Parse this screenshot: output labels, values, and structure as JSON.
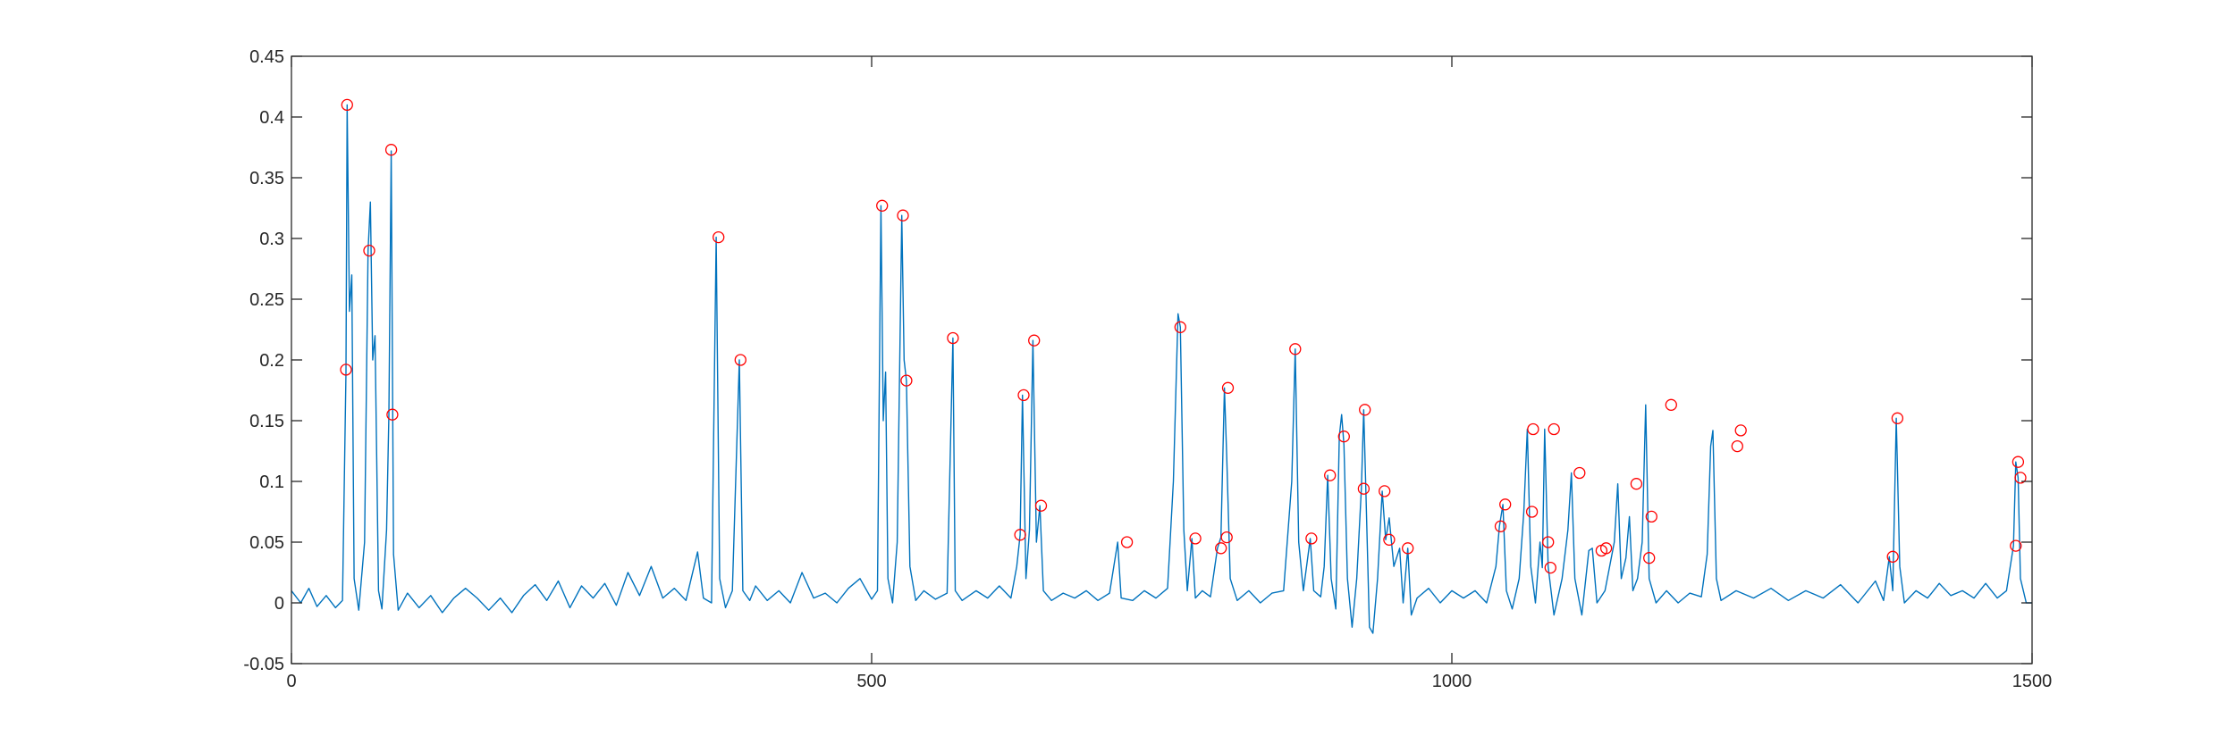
{
  "chart_data": {
    "type": "line",
    "title": "",
    "xlabel": "",
    "ylabel": "",
    "xlim": [
      0,
      1500
    ],
    "ylim": [
      -0.05,
      0.45
    ],
    "xticks": [
      0,
      500,
      1000,
      1500
    ],
    "xtick_labels": [
      "0",
      "500",
      "1000",
      "1500"
    ],
    "yticks": [
      -0.05,
      0,
      0.05,
      0.1,
      0.15,
      0.2,
      0.25,
      0.3,
      0.35,
      0.4,
      0.45
    ],
    "ytick_labels": [
      "-0.05",
      "0",
      "0.05",
      "0.1",
      "0.15",
      "0.2",
      "0.25",
      "0.3",
      "0.35",
      "0.4",
      "0.45"
    ],
    "grid": false,
    "colors": {
      "line": "#0072BD",
      "peak_marker": "#FF0000",
      "axis": "#262626"
    },
    "series": [
      {
        "values": [
          [
            0,
            0.01
          ],
          [
            8,
            0.0
          ],
          [
            15,
            0.012
          ],
          [
            22,
            -0.003
          ],
          [
            30,
            0.006
          ],
          [
            38,
            -0.004
          ],
          [
            44,
            0.002
          ],
          [
            47,
            0.19
          ],
          [
            48,
            0.41
          ],
          [
            50,
            0.24
          ],
          [
            52,
            0.27
          ],
          [
            54,
            0.02
          ],
          [
            58,
            -0.006
          ],
          [
            63,
            0.05
          ],
          [
            66,
            0.29
          ],
          [
            68,
            0.33
          ],
          [
            70,
            0.2
          ],
          [
            72,
            0.22
          ],
          [
            75,
            0.01
          ],
          [
            78,
            -0.005
          ],
          [
            82,
            0.06
          ],
          [
            84,
            0.155
          ],
          [
            86,
            0.372
          ],
          [
            88,
            0.04
          ],
          [
            92,
            -0.006
          ],
          [
            100,
            0.008
          ],
          [
            110,
            -0.004
          ],
          [
            120,
            0.006
          ],
          [
            130,
            -0.008
          ],
          [
            140,
            0.004
          ],
          [
            150,
            0.012
          ],
          [
            160,
            0.004
          ],
          [
            170,
            -0.006
          ],
          [
            180,
            0.004
          ],
          [
            190,
            -0.008
          ],
          [
            200,
            0.006
          ],
          [
            210,
            0.015
          ],
          [
            220,
            0.002
          ],
          [
            230,
            0.018
          ],
          [
            240,
            -0.004
          ],
          [
            250,
            0.014
          ],
          [
            260,
            0.004
          ],
          [
            270,
            0.016
          ],
          [
            280,
            -0.002
          ],
          [
            290,
            0.025
          ],
          [
            300,
            0.006
          ],
          [
            310,
            0.03
          ],
          [
            320,
            0.004
          ],
          [
            330,
            0.012
          ],
          [
            340,
            0.002
          ],
          [
            350,
            0.042
          ],
          [
            355,
            0.004
          ],
          [
            362,
            0.0
          ],
          [
            366,
            0.301
          ],
          [
            369,
            0.02
          ],
          [
            374,
            -0.004
          ],
          [
            380,
            0.01
          ],
          [
            386,
            0.2
          ],
          [
            389,
            0.01
          ],
          [
            395,
            0.002
          ],
          [
            400,
            0.014
          ],
          [
            410,
            0.002
          ],
          [
            420,
            0.01
          ],
          [
            430,
            0.0
          ],
          [
            440,
            0.025
          ],
          [
            450,
            0.004
          ],
          [
            460,
            0.008
          ],
          [
            470,
            0.0
          ],
          [
            480,
            0.012
          ],
          [
            490,
            0.02
          ],
          [
            500,
            0.003
          ],
          [
            505,
            0.01
          ],
          [
            508,
            0.327
          ],
          [
            510,
            0.15
          ],
          [
            512,
            0.19
          ],
          [
            514,
            0.02
          ],
          [
            518,
            0.0
          ],
          [
            522,
            0.05
          ],
          [
            526,
            0.319
          ],
          [
            528,
            0.2
          ],
          [
            530,
            0.183
          ],
          [
            533,
            0.03
          ],
          [
            538,
            0.002
          ],
          [
            545,
            0.01
          ],
          [
            555,
            0.003
          ],
          [
            565,
            0.008
          ],
          [
            570,
            0.218
          ],
          [
            572,
            0.01
          ],
          [
            578,
            0.002
          ],
          [
            590,
            0.01
          ],
          [
            600,
            0.004
          ],
          [
            610,
            0.014
          ],
          [
            620,
            0.004
          ],
          [
            625,
            0.03
          ],
          [
            628,
            0.056
          ],
          [
            630,
            0.171
          ],
          [
            633,
            0.02
          ],
          [
            636,
            0.06
          ],
          [
            639,
            0.216
          ],
          [
            642,
            0.05
          ],
          [
            645,
            0.08
          ],
          [
            648,
            0.01
          ],
          [
            655,
            0.002
          ],
          [
            665,
            0.008
          ],
          [
            675,
            0.004
          ],
          [
            685,
            0.01
          ],
          [
            695,
            0.002
          ],
          [
            705,
            0.008
          ],
          [
            712,
            0.05
          ],
          [
            715,
            0.004
          ],
          [
            725,
            0.002
          ],
          [
            735,
            0.01
          ],
          [
            745,
            0.004
          ],
          [
            755,
            0.012
          ],
          [
            760,
            0.1
          ],
          [
            764,
            0.238
          ],
          [
            766,
            0.227
          ],
          [
            769,
            0.06
          ],
          [
            772,
            0.01
          ],
          [
            776,
            0.053
          ],
          [
            779,
            0.004
          ],
          [
            785,
            0.01
          ],
          [
            792,
            0.005
          ],
          [
            798,
            0.045
          ],
          [
            801,
            0.054
          ],
          [
            804,
            0.177
          ],
          [
            806,
            0.12
          ],
          [
            809,
            0.02
          ],
          [
            815,
            0.002
          ],
          [
            825,
            0.01
          ],
          [
            835,
            0.0
          ],
          [
            845,
            0.008
          ],
          [
            855,
            0.01
          ],
          [
            862,
            0.1
          ],
          [
            865,
            0.209
          ],
          [
            868,
            0.05
          ],
          [
            872,
            0.01
          ],
          [
            878,
            0.053
          ],
          [
            881,
            0.01
          ],
          [
            887,
            0.005
          ],
          [
            890,
            0.03
          ],
          [
            893,
            0.105
          ],
          [
            896,
            0.02
          ],
          [
            900,
            -0.005
          ],
          [
            903,
            0.137
          ],
          [
            905,
            0.155
          ],
          [
            907,
            0.13
          ],
          [
            910,
            0.02
          ],
          [
            914,
            -0.02
          ],
          [
            918,
            0.02
          ],
          [
            922,
            0.094
          ],
          [
            924,
            0.159
          ],
          [
            926,
            0.09
          ],
          [
            929,
            -0.02
          ],
          [
            932,
            -0.025
          ],
          [
            936,
            0.02
          ],
          [
            940,
            0.092
          ],
          [
            943,
            0.052
          ],
          [
            946,
            0.07
          ],
          [
            950,
            0.03
          ],
          [
            955,
            0.045
          ],
          [
            958,
            0.0
          ],
          [
            962,
            0.045
          ],
          [
            965,
            -0.01
          ],
          [
            970,
            0.004
          ],
          [
            980,
            0.012
          ],
          [
            990,
            0.0
          ],
          [
            1000,
            0.01
          ],
          [
            1010,
            0.004
          ],
          [
            1020,
            0.01
          ],
          [
            1030,
            0.0
          ],
          [
            1038,
            0.03
          ],
          [
            1041,
            0.063
          ],
          [
            1044,
            0.081
          ],
          [
            1047,
            0.01
          ],
          [
            1052,
            -0.005
          ],
          [
            1058,
            0.02
          ],
          [
            1062,
            0.075
          ],
          [
            1065,
            0.143
          ],
          [
            1068,
            0.03
          ],
          [
            1072,
            0.0
          ],
          [
            1076,
            0.05
          ],
          [
            1078,
            0.029
          ],
          [
            1080,
            0.143
          ],
          [
            1083,
            0.03
          ],
          [
            1088,
            -0.01
          ],
          [
            1095,
            0.02
          ],
          [
            1100,
            0.06
          ],
          [
            1103,
            0.107
          ],
          [
            1106,
            0.02
          ],
          [
            1112,
            -0.01
          ],
          [
            1118,
            0.043
          ],
          [
            1121,
            0.045
          ],
          [
            1125,
            0.0
          ],
          [
            1132,
            0.01
          ],
          [
            1140,
            0.05
          ],
          [
            1143,
            0.098
          ],
          [
            1146,
            0.02
          ],
          [
            1150,
            0.037
          ],
          [
            1153,
            0.071
          ],
          [
            1156,
            0.01
          ],
          [
            1160,
            0.02
          ],
          [
            1164,
            0.05
          ],
          [
            1167,
            0.163
          ],
          [
            1170,
            0.02
          ],
          [
            1176,
            0.0
          ],
          [
            1185,
            0.01
          ],
          [
            1195,
            0.0
          ],
          [
            1205,
            0.008
          ],
          [
            1215,
            0.005
          ],
          [
            1220,
            0.04
          ],
          [
            1223,
            0.129
          ],
          [
            1225,
            0.142
          ],
          [
            1228,
            0.02
          ],
          [
            1232,
            0.002
          ],
          [
            1245,
            0.01
          ],
          [
            1260,
            0.004
          ],
          [
            1275,
            0.012
          ],
          [
            1290,
            0.002
          ],
          [
            1305,
            0.01
          ],
          [
            1320,
            0.004
          ],
          [
            1335,
            0.015
          ],
          [
            1350,
            0.0
          ],
          [
            1365,
            0.018
          ],
          [
            1372,
            0.002
          ],
          [
            1377,
            0.038
          ],
          [
            1380,
            0.01
          ],
          [
            1383,
            0.152
          ],
          [
            1386,
            0.03
          ],
          [
            1390,
            0.0
          ],
          [
            1400,
            0.01
          ],
          [
            1410,
            0.004
          ],
          [
            1420,
            0.016
          ],
          [
            1430,
            0.006
          ],
          [
            1440,
            0.01
          ],
          [
            1450,
            0.004
          ],
          [
            1460,
            0.016
          ],
          [
            1470,
            0.004
          ],
          [
            1478,
            0.01
          ],
          [
            1484,
            0.047
          ],
          [
            1486,
            0.116
          ],
          [
            1488,
            0.103
          ],
          [
            1490,
            0.02
          ],
          [
            1495,
            0.0
          ],
          [
            1500,
            0.0
          ]
        ]
      }
    ],
    "peaks": [
      [
        47,
        0.192
      ],
      [
        48,
        0.41
      ],
      [
        67,
        0.29
      ],
      [
        86,
        0.373
      ],
      [
        87,
        0.155
      ],
      [
        368,
        0.301
      ],
      [
        387,
        0.2
      ],
      [
        509,
        0.327
      ],
      [
        527,
        0.319
      ],
      [
        530,
        0.183
      ],
      [
        570,
        0.218
      ],
      [
        628,
        0.056
      ],
      [
        631,
        0.171
      ],
      [
        640,
        0.216
      ],
      [
        646,
        0.08
      ],
      [
        720,
        0.05
      ],
      [
        766,
        0.227
      ],
      [
        779,
        0.053
      ],
      [
        801,
        0.045
      ],
      [
        806,
        0.054
      ],
      [
        807,
        0.177
      ],
      [
        865,
        0.209
      ],
      [
        879,
        0.053
      ],
      [
        895,
        0.105
      ],
      [
        907,
        0.137
      ],
      [
        924,
        0.094
      ],
      [
        925,
        0.159
      ],
      [
        942,
        0.092
      ],
      [
        946,
        0.052
      ],
      [
        962,
        0.045
      ],
      [
        1042,
        0.063
      ],
      [
        1046,
        0.081
      ],
      [
        1069,
        0.075
      ],
      [
        1070,
        0.143
      ],
      [
        1083,
        0.05
      ],
      [
        1085,
        0.029
      ],
      [
        1088,
        0.143
      ],
      [
        1110,
        0.107
      ],
      [
        1129,
        0.043
      ],
      [
        1133,
        0.045
      ],
      [
        1159,
        0.098
      ],
      [
        1170,
        0.037
      ],
      [
        1172,
        0.071
      ],
      [
        1189,
        0.163
      ],
      [
        1246,
        0.129
      ],
      [
        1249,
        0.142
      ],
      [
        1380,
        0.038
      ],
      [
        1384,
        0.152
      ],
      [
        1486,
        0.047
      ],
      [
        1488,
        0.116
      ],
      [
        1490,
        0.103
      ]
    ]
  }
}
